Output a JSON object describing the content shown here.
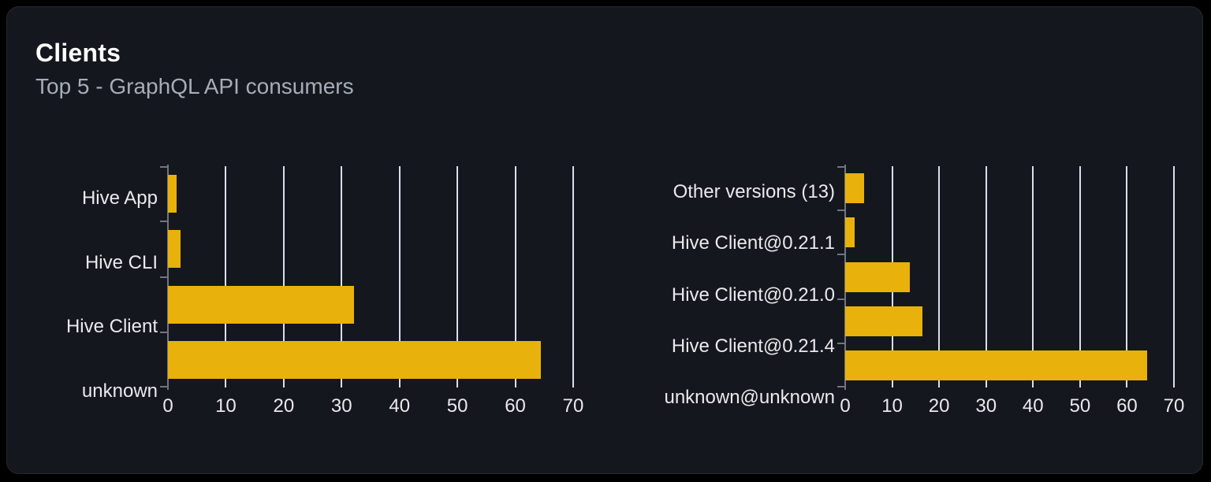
{
  "card": {
    "title": "Clients",
    "subtitle": "Top 5 - GraphQL API consumers"
  },
  "colors": {
    "page_bg": "#000000",
    "card_bg": "#14171d",
    "bar": "#e8b10c",
    "grid_line": "#dcdfe8",
    "axis_line": "#71757e",
    "title_text": "#ffffff",
    "subtitle_text": "#a7adb8",
    "label_text": "#e9eaee"
  },
  "chart_data": [
    {
      "type": "bar",
      "orientation": "horizontal",
      "categories": [
        "Hive App",
        "Hive CLI",
        "Hive Client",
        "unknown"
      ],
      "values": [
        1.5,
        2.2,
        32.2,
        64.4
      ],
      "x_ticks": [
        0,
        10,
        20,
        30,
        40,
        50,
        60,
        70
      ],
      "xlim": [
        0,
        70
      ],
      "grid": true,
      "legend": false,
      "xlabel": "",
      "ylabel": ""
    },
    {
      "type": "bar",
      "orientation": "horizontal",
      "categories": [
        "Other versions (13)",
        "Hive Client@0.21.1",
        "Hive Client@0.21.0",
        "Hive Client@0.21.4",
        "unknown@unknown"
      ],
      "values": [
        4,
        2,
        13.8,
        16.4,
        64.3
      ],
      "x_ticks": [
        0,
        10,
        20,
        30,
        40,
        50,
        60,
        70
      ],
      "xlim": [
        0,
        70
      ],
      "grid": true,
      "legend": false,
      "xlabel": "",
      "ylabel": ""
    }
  ]
}
